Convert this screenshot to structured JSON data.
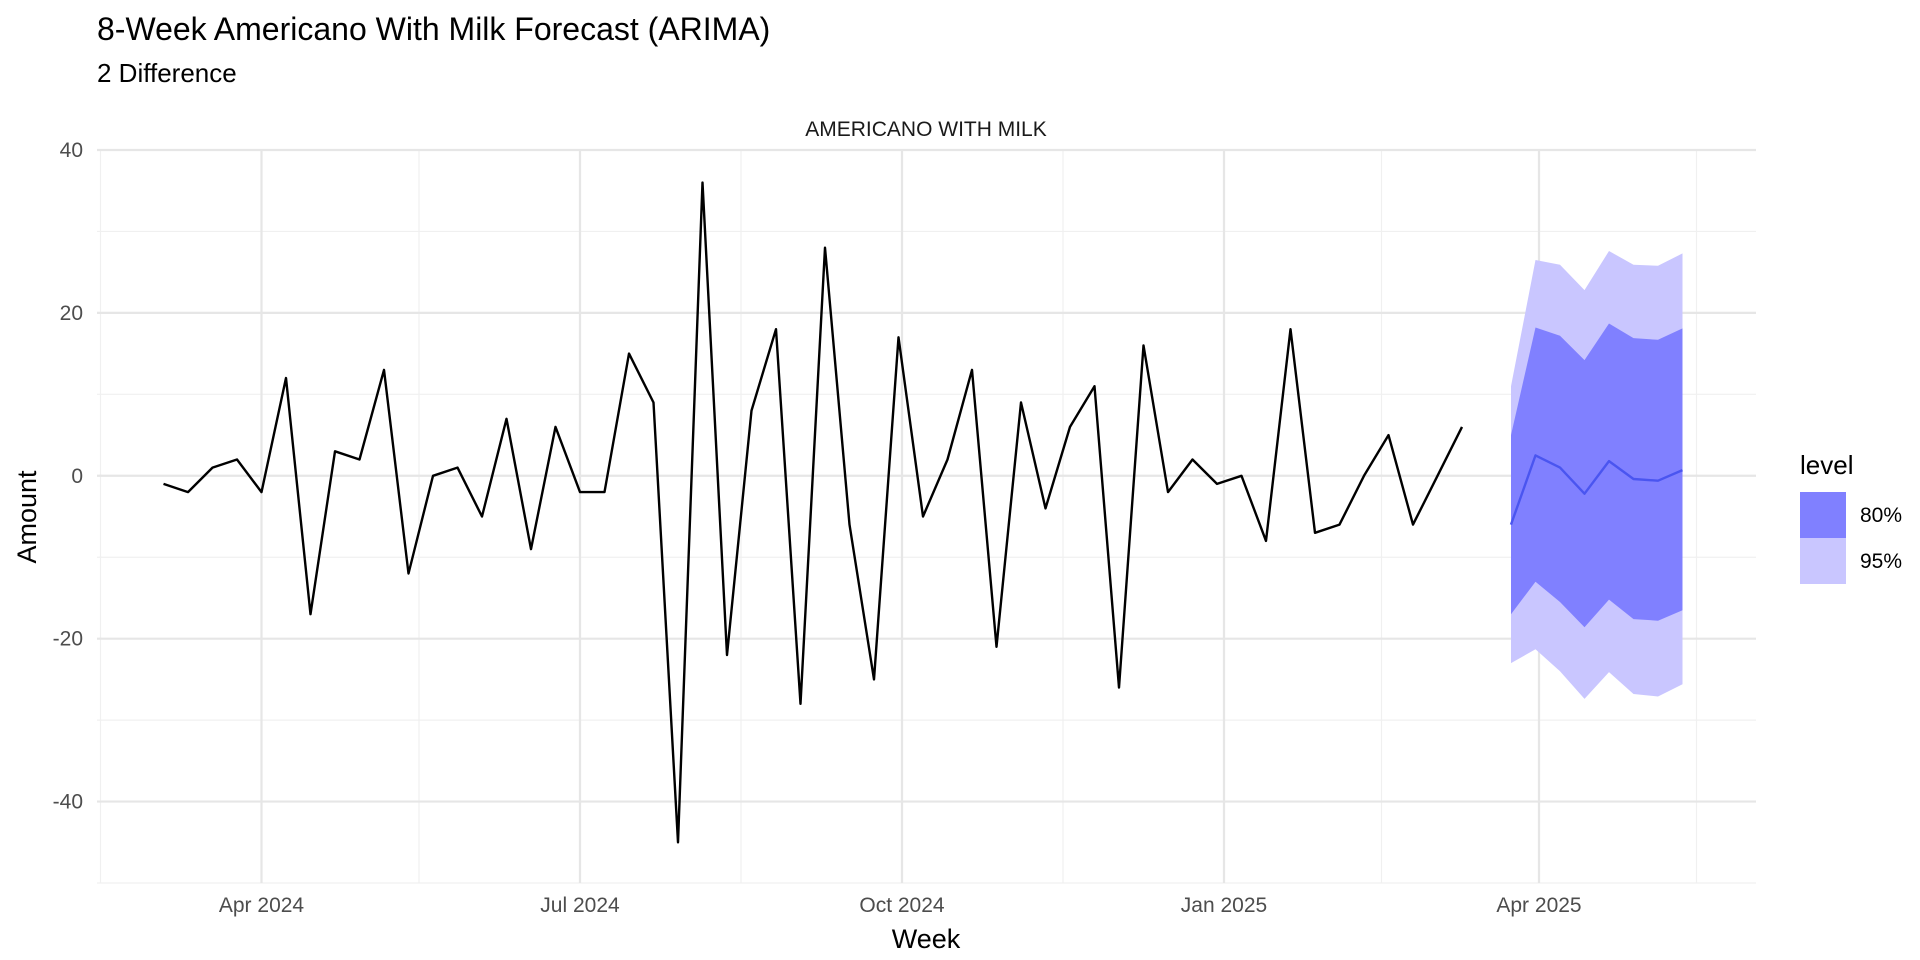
{
  "chart_data": {
    "type": "line",
    "title": "8-Week Americano With Milk Forecast (ARIMA)",
    "subtitle": "2 Difference",
    "facet_label": "AMERICANO WITH MILK",
    "xlabel": "Week",
    "ylabel": "Amount",
    "ylim": [
      -50,
      40
    ],
    "y_ticks": [
      -40,
      -20,
      0,
      20,
      40
    ],
    "x_range": [
      "2024-02-14",
      "2025-06-02"
    ],
    "x_ticks": [
      {
        "date": "2024-04-01",
        "label": "Apr 2024"
      },
      {
        "date": "2024-07-01",
        "label": "Jul 2024"
      },
      {
        "date": "2024-10-01",
        "label": "Oct 2024"
      },
      {
        "date": "2025-01-01",
        "label": "Jan 2025"
      },
      {
        "date": "2025-04-01",
        "label": "Apr 2025"
      }
    ],
    "x_minor_ticks": [
      "2024-02-15",
      "2024-05-16",
      "2024-08-16",
      "2024-11-16",
      "2025-02-15",
      "2025-05-16"
    ],
    "grid": true,
    "history": {
      "start_date": "2024-03-04",
      "interval_days": 7,
      "values": [
        -1,
        -2,
        1,
        2,
        -2,
        12,
        -17,
        3,
        2,
        13,
        -12,
        0,
        1,
        -5,
        7,
        -9,
        6,
        -2,
        -2,
        15,
        9,
        -45,
        36,
        -22,
        8,
        18,
        -28,
        28,
        -6,
        -25,
        17,
        -5,
        2,
        13,
        -21,
        9,
        -4,
        6,
        11,
        -26,
        16,
        -2,
        2,
        -1,
        0,
        -8,
        18,
        -7,
        -6,
        0,
        5,
        -6,
        0,
        6
      ]
    },
    "forecast": {
      "start_date": "2025-03-24",
      "interval_days": 7,
      "mean": [
        -6,
        2.5,
        1,
        -2.2,
        1.8,
        -0.4,
        -0.6,
        0.7
      ],
      "lo80": [
        -17,
        -13,
        -15.5,
        -18.6,
        -15.2,
        -17.6,
        -17.8,
        -16.5
      ],
      "hi80": [
        5,
        18.2,
        17.2,
        14.2,
        18.7,
        16.9,
        16.7,
        18.1
      ],
      "lo95": [
        -23,
        -21.3,
        -24,
        -27.4,
        -24.1,
        -26.8,
        -27.1,
        -25.6
      ],
      "hi95": [
        11,
        26.5,
        25.9,
        22.8,
        27.6,
        25.9,
        25.8,
        27.3
      ]
    },
    "legend": {
      "title": "level",
      "position": "right",
      "entries": [
        {
          "label": "80%",
          "color": "#8080ff"
        },
        {
          "label": "95%",
          "color": "#c9c6ff"
        }
      ]
    },
    "colors": {
      "history_line": "#000000",
      "forecast_line": "#4a55f0",
      "band80": "#8080ff",
      "band95": "#c9c6ff",
      "grid_major": "#e6e6e6",
      "grid_minor": "#f0f0f0"
    }
  }
}
